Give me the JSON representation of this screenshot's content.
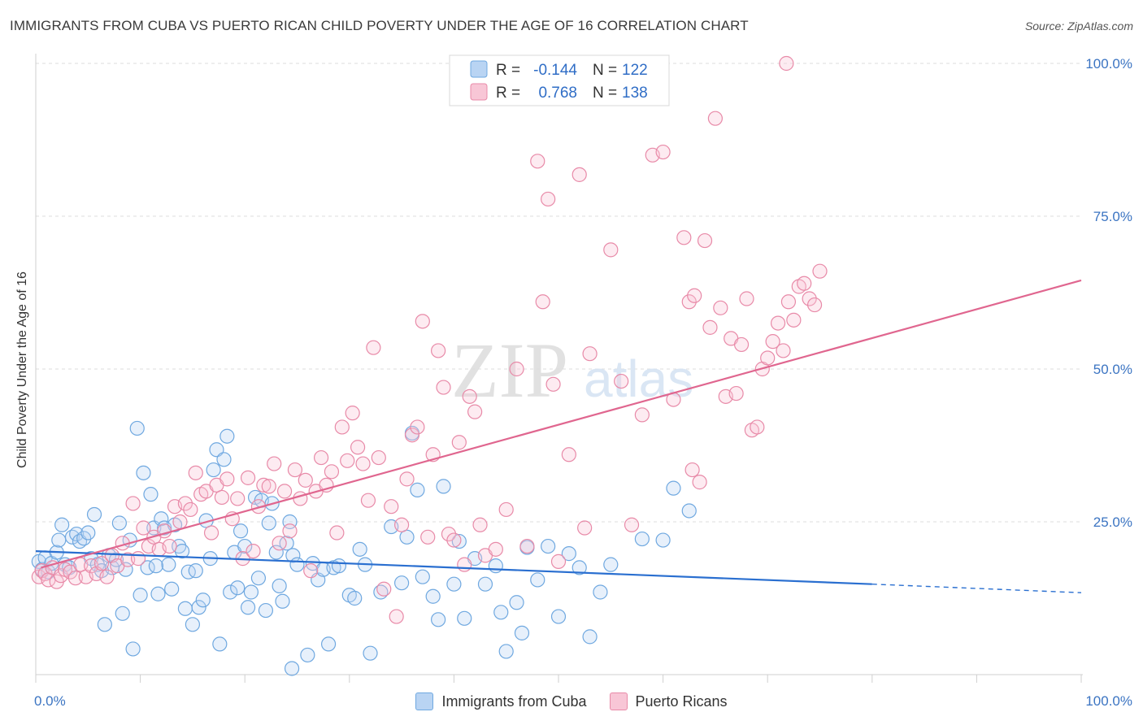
{
  "header": {
    "title": "IMMIGRANTS FROM CUBA VS PUERTO RICAN CHILD POVERTY UNDER THE AGE OF 16 CORRELATION CHART",
    "source": "Source: ZipAtlas.com"
  },
  "watermark": {
    "zip": "ZIP",
    "atlas": "atlas"
  },
  "chart_data": {
    "type": "scatter",
    "title": "IMMIGRANTS FROM CUBA VS PUERTO RICAN CHILD POVERTY UNDER THE AGE OF 16 CORRELATION CHART",
    "xlabel": "",
    "ylabel": "Child Poverty Under the Age of 16",
    "xlim": [
      0,
      100
    ],
    "ylim": [
      0,
      100
    ],
    "x_tick_labels": [
      "0.0%",
      "100.0%"
    ],
    "y_tick_labels": [
      "25.0%",
      "50.0%",
      "75.0%",
      "100.0%"
    ],
    "y_ticks": [
      25,
      50,
      75,
      100
    ],
    "grid": true,
    "legend_position": "top-center",
    "legend": [
      {
        "name": "Immigrants from Cuba",
        "r_label": "R =",
        "r_value": "-0.144",
        "n_label": "N =",
        "n_value": "122",
        "color": "#6fa8e0",
        "fill": "#b9d4f3"
      },
      {
        "name": "Puerto Ricans",
        "r_label": "R =",
        "r_value": "0.768",
        "n_label": "N =",
        "n_value": "138",
        "color": "#e88aa8",
        "fill": "#f8c6d6"
      }
    ],
    "series": [
      {
        "name": "Immigrants from Cuba",
        "color": "#6fa8e0",
        "trend": {
          "x": [
            0,
            80
          ],
          "y": [
            20.2,
            14.8
          ],
          "dashed_to": [
            100,
            13.4
          ],
          "color": "#2a6fd0"
        },
        "points": [
          [
            0.3,
            18.5
          ],
          [
            0.6,
            17.2
          ],
          [
            0.9,
            19.1
          ],
          [
            1.2,
            16.8
          ],
          [
            1.5,
            18.2
          ],
          [
            2.0,
            20.0
          ],
          [
            2.2,
            22.0
          ],
          [
            2.5,
            24.5
          ],
          [
            2.8,
            18.0
          ],
          [
            3.2,
            17.5
          ],
          [
            3.5,
            22.5
          ],
          [
            3.9,
            23.0
          ],
          [
            4.2,
            21.8
          ],
          [
            4.6,
            22.3
          ],
          [
            5.0,
            23.2
          ],
          [
            5.3,
            19.0
          ],
          [
            5.6,
            26.2
          ],
          [
            5.9,
            18.0
          ],
          [
            6.3,
            17.0
          ],
          [
            6.6,
            8.2
          ],
          [
            7.0,
            19.5
          ],
          [
            7.3,
            17.5
          ],
          [
            7.7,
            18.8
          ],
          [
            8.0,
            24.8
          ],
          [
            8.3,
            10.0
          ],
          [
            8.6,
            17.2
          ],
          [
            9.0,
            22.0
          ],
          [
            9.3,
            4.2
          ],
          [
            9.7,
            40.3
          ],
          [
            10.0,
            13.0
          ],
          [
            10.3,
            33.0
          ],
          [
            10.7,
            17.5
          ],
          [
            11.0,
            29.5
          ],
          [
            11.3,
            24.0
          ],
          [
            11.7,
            13.2
          ],
          [
            12.0,
            25.5
          ],
          [
            12.3,
            24.0
          ],
          [
            12.7,
            18.0
          ],
          [
            13.0,
            14.0
          ],
          [
            13.3,
            24.5
          ],
          [
            13.7,
            21.0
          ],
          [
            14.0,
            20.2
          ],
          [
            14.3,
            10.8
          ],
          [
            14.6,
            16.8
          ],
          [
            15.0,
            8.2
          ],
          [
            15.3,
            17.0
          ],
          [
            15.6,
            11.0
          ],
          [
            16.0,
            12.2
          ],
          [
            16.3,
            25.2
          ],
          [
            16.7,
            19.0
          ],
          [
            17.0,
            33.5
          ],
          [
            17.3,
            36.8
          ],
          [
            17.6,
            5.0
          ],
          [
            18.0,
            35.2
          ],
          [
            18.3,
            39.0
          ],
          [
            18.6,
            13.5
          ],
          [
            19.0,
            20.0
          ],
          [
            19.3,
            14.2
          ],
          [
            19.6,
            23.5
          ],
          [
            20.0,
            21.0
          ],
          [
            20.3,
            11.0
          ],
          [
            20.6,
            13.5
          ],
          [
            21.0,
            29.0
          ],
          [
            21.3,
            15.8
          ],
          [
            21.6,
            28.5
          ],
          [
            22.0,
            10.5
          ],
          [
            22.3,
            24.8
          ],
          [
            22.6,
            28.0
          ],
          [
            23.0,
            20.0
          ],
          [
            23.3,
            14.5
          ],
          [
            23.6,
            12.0
          ],
          [
            24.0,
            21.5
          ],
          [
            24.3,
            25.0
          ],
          [
            24.6,
            19.5
          ],
          [
            25.0,
            18.0
          ],
          [
            26.0,
            3.2
          ],
          [
            26.5,
            18.2
          ],
          [
            27.0,
            15.5
          ],
          [
            27.5,
            17.2
          ],
          [
            28.0,
            5.0
          ],
          [
            28.5,
            17.5
          ],
          [
            29.0,
            17.8
          ],
          [
            30.0,
            13.0
          ],
          [
            30.5,
            12.5
          ],
          [
            31.0,
            20.5
          ],
          [
            31.5,
            18.0
          ],
          [
            32.0,
            3.5
          ],
          [
            33.0,
            13.5
          ],
          [
            34.0,
            24.2
          ],
          [
            35.0,
            15.0
          ],
          [
            35.5,
            22.5
          ],
          [
            36.0,
            39.5
          ],
          [
            36.5,
            30.2
          ],
          [
            37.0,
            16.0
          ],
          [
            38.0,
            12.8
          ],
          [
            38.5,
            9.0
          ],
          [
            39.0,
            30.8
          ],
          [
            40.0,
            14.8
          ],
          [
            40.5,
            21.8
          ],
          [
            41.0,
            9.2
          ],
          [
            42.0,
            19.0
          ],
          [
            43.0,
            14.8
          ],
          [
            44.0,
            17.8
          ],
          [
            44.5,
            10.2
          ],
          [
            45.0,
            3.8
          ],
          [
            46.0,
            11.8
          ],
          [
            46.5,
            6.8
          ],
          [
            47.0,
            20.8
          ],
          [
            48.0,
            15.5
          ],
          [
            49.0,
            21.0
          ],
          [
            50.0,
            9.5
          ],
          [
            51.0,
            19.8
          ],
          [
            52.0,
            17.5
          ],
          [
            53.0,
            6.2
          ],
          [
            54.0,
            13.5
          ],
          [
            58.0,
            22.2
          ],
          [
            60.0,
            22.0
          ],
          [
            61.0,
            30.5
          ],
          [
            62.5,
            26.8
          ],
          [
            55.0,
            18.0
          ],
          [
            24.5,
            1.0
          ],
          [
            11.5,
            17.8
          ]
        ]
      },
      {
        "name": "Puerto Ricans",
        "color": "#e88aa8",
        "trend": {
          "x": [
            0.5,
            100
          ],
          "y": [
            17.5,
            64.5
          ],
          "color": "#e0668f"
        },
        "points": [
          [
            0.3,
            16.0
          ],
          [
            0.6,
            17.0
          ],
          [
            0.9,
            16.5
          ],
          [
            1.2,
            15.5
          ],
          [
            1.6,
            17.5
          ],
          [
            2.0,
            15.2
          ],
          [
            2.4,
            16.2
          ],
          [
            2.8,
            17.2
          ],
          [
            3.3,
            16.8
          ],
          [
            3.8,
            15.8
          ],
          [
            4.3,
            18.0
          ],
          [
            4.8,
            16.0
          ],
          [
            5.3,
            17.8
          ],
          [
            5.8,
            16.5
          ],
          [
            6.3,
            18.2
          ],
          [
            6.8,
            16.0
          ],
          [
            7.3,
            19.5
          ],
          [
            7.8,
            17.8
          ],
          [
            8.3,
            21.5
          ],
          [
            8.8,
            18.8
          ],
          [
            9.3,
            28.0
          ],
          [
            9.8,
            19.0
          ],
          [
            10.3,
            24.0
          ],
          [
            10.8,
            21.0
          ],
          [
            11.3,
            22.5
          ],
          [
            11.8,
            20.5
          ],
          [
            12.3,
            23.5
          ],
          [
            12.8,
            21.0
          ],
          [
            13.3,
            27.5
          ],
          [
            13.8,
            25.0
          ],
          [
            14.3,
            28.0
          ],
          [
            14.8,
            27.0
          ],
          [
            15.3,
            33.0
          ],
          [
            15.8,
            29.5
          ],
          [
            16.3,
            30.0
          ],
          [
            16.8,
            23.2
          ],
          [
            17.3,
            31.0
          ],
          [
            17.8,
            29.0
          ],
          [
            18.3,
            32.0
          ],
          [
            18.8,
            25.5
          ],
          [
            19.3,
            28.8
          ],
          [
            19.8,
            19.0
          ],
          [
            20.3,
            32.2
          ],
          [
            20.8,
            20.2
          ],
          [
            21.3,
            27.5
          ],
          [
            21.8,
            31.0
          ],
          [
            22.3,
            30.8
          ],
          [
            22.8,
            34.5
          ],
          [
            23.3,
            21.5
          ],
          [
            23.8,
            30.0
          ],
          [
            24.3,
            23.5
          ],
          [
            24.8,
            33.5
          ],
          [
            25.3,
            28.8
          ],
          [
            25.8,
            31.8
          ],
          [
            26.3,
            17.0
          ],
          [
            26.8,
            30.0
          ],
          [
            27.3,
            35.5
          ],
          [
            27.8,
            31.0
          ],
          [
            28.3,
            33.2
          ],
          [
            28.8,
            23.2
          ],
          [
            29.3,
            40.5
          ],
          [
            29.8,
            35.0
          ],
          [
            30.3,
            42.8
          ],
          [
            30.8,
            37.2
          ],
          [
            31.3,
            34.5
          ],
          [
            31.8,
            28.5
          ],
          [
            32.3,
            53.5
          ],
          [
            32.8,
            35.5
          ],
          [
            33.3,
            14.0
          ],
          [
            34.0,
            27.5
          ],
          [
            34.5,
            9.5
          ],
          [
            35.0,
            24.5
          ],
          [
            35.5,
            32.0
          ],
          [
            36.0,
            39.2
          ],
          [
            36.5,
            40.5
          ],
          [
            37.0,
            57.8
          ],
          [
            37.5,
            22.5
          ],
          [
            38.0,
            36.0
          ],
          [
            38.5,
            53.0
          ],
          [
            39.0,
            47.0
          ],
          [
            39.5,
            23.0
          ],
          [
            40.0,
            22.0
          ],
          [
            40.5,
            38.0
          ],
          [
            41.0,
            18.0
          ],
          [
            41.5,
            45.5
          ],
          [
            42.0,
            43.0
          ],
          [
            42.5,
            24.5
          ],
          [
            43.0,
            19.5
          ],
          [
            44.0,
            20.5
          ],
          [
            45.0,
            27.0
          ],
          [
            46.0,
            50.0
          ],
          [
            47.0,
            21.0
          ],
          [
            48.0,
            84.0
          ],
          [
            48.5,
            61.0
          ],
          [
            49.0,
            77.8
          ],
          [
            49.5,
            47.5
          ],
          [
            50.0,
            18.5
          ],
          [
            51.0,
            36.0
          ],
          [
            52.0,
            81.8
          ],
          [
            53.0,
            52.5
          ],
          [
            54.0,
            100.0
          ],
          [
            55.0,
            69.5
          ],
          [
            56.0,
            48.0
          ],
          [
            57.0,
            24.5
          ],
          [
            58.0,
            42.5
          ],
          [
            59.0,
            85.0
          ],
          [
            60.0,
            85.5
          ],
          [
            61.0,
            45.0
          ],
          [
            62.0,
            71.5
          ],
          [
            62.5,
            61.0
          ],
          [
            63.0,
            62.0
          ],
          [
            63.5,
            31.5
          ],
          [
            64.0,
            71.0
          ],
          [
            64.5,
            56.8
          ],
          [
            65.0,
            91.0
          ],
          [
            65.5,
            60.0
          ],
          [
            66.0,
            45.5
          ],
          [
            66.5,
            55.0
          ],
          [
            67.0,
            46.0
          ],
          [
            67.5,
            54.0
          ],
          [
            68.0,
            61.5
          ],
          [
            68.5,
            40.0
          ],
          [
            69.0,
            40.5
          ],
          [
            69.5,
            50.0
          ],
          [
            70.0,
            51.8
          ],
          [
            70.5,
            54.5
          ],
          [
            71.0,
            57.5
          ],
          [
            71.5,
            53.0
          ],
          [
            72.0,
            61.0
          ],
          [
            72.5,
            58.0
          ],
          [
            73.0,
            63.5
          ],
          [
            73.5,
            64.0
          ],
          [
            74.0,
            61.5
          ],
          [
            74.5,
            60.5
          ],
          [
            75.0,
            66.0
          ],
          [
            71.8,
            100.0
          ],
          [
            62.8,
            33.5
          ],
          [
            52.5,
            24.0
          ]
        ]
      }
    ]
  }
}
